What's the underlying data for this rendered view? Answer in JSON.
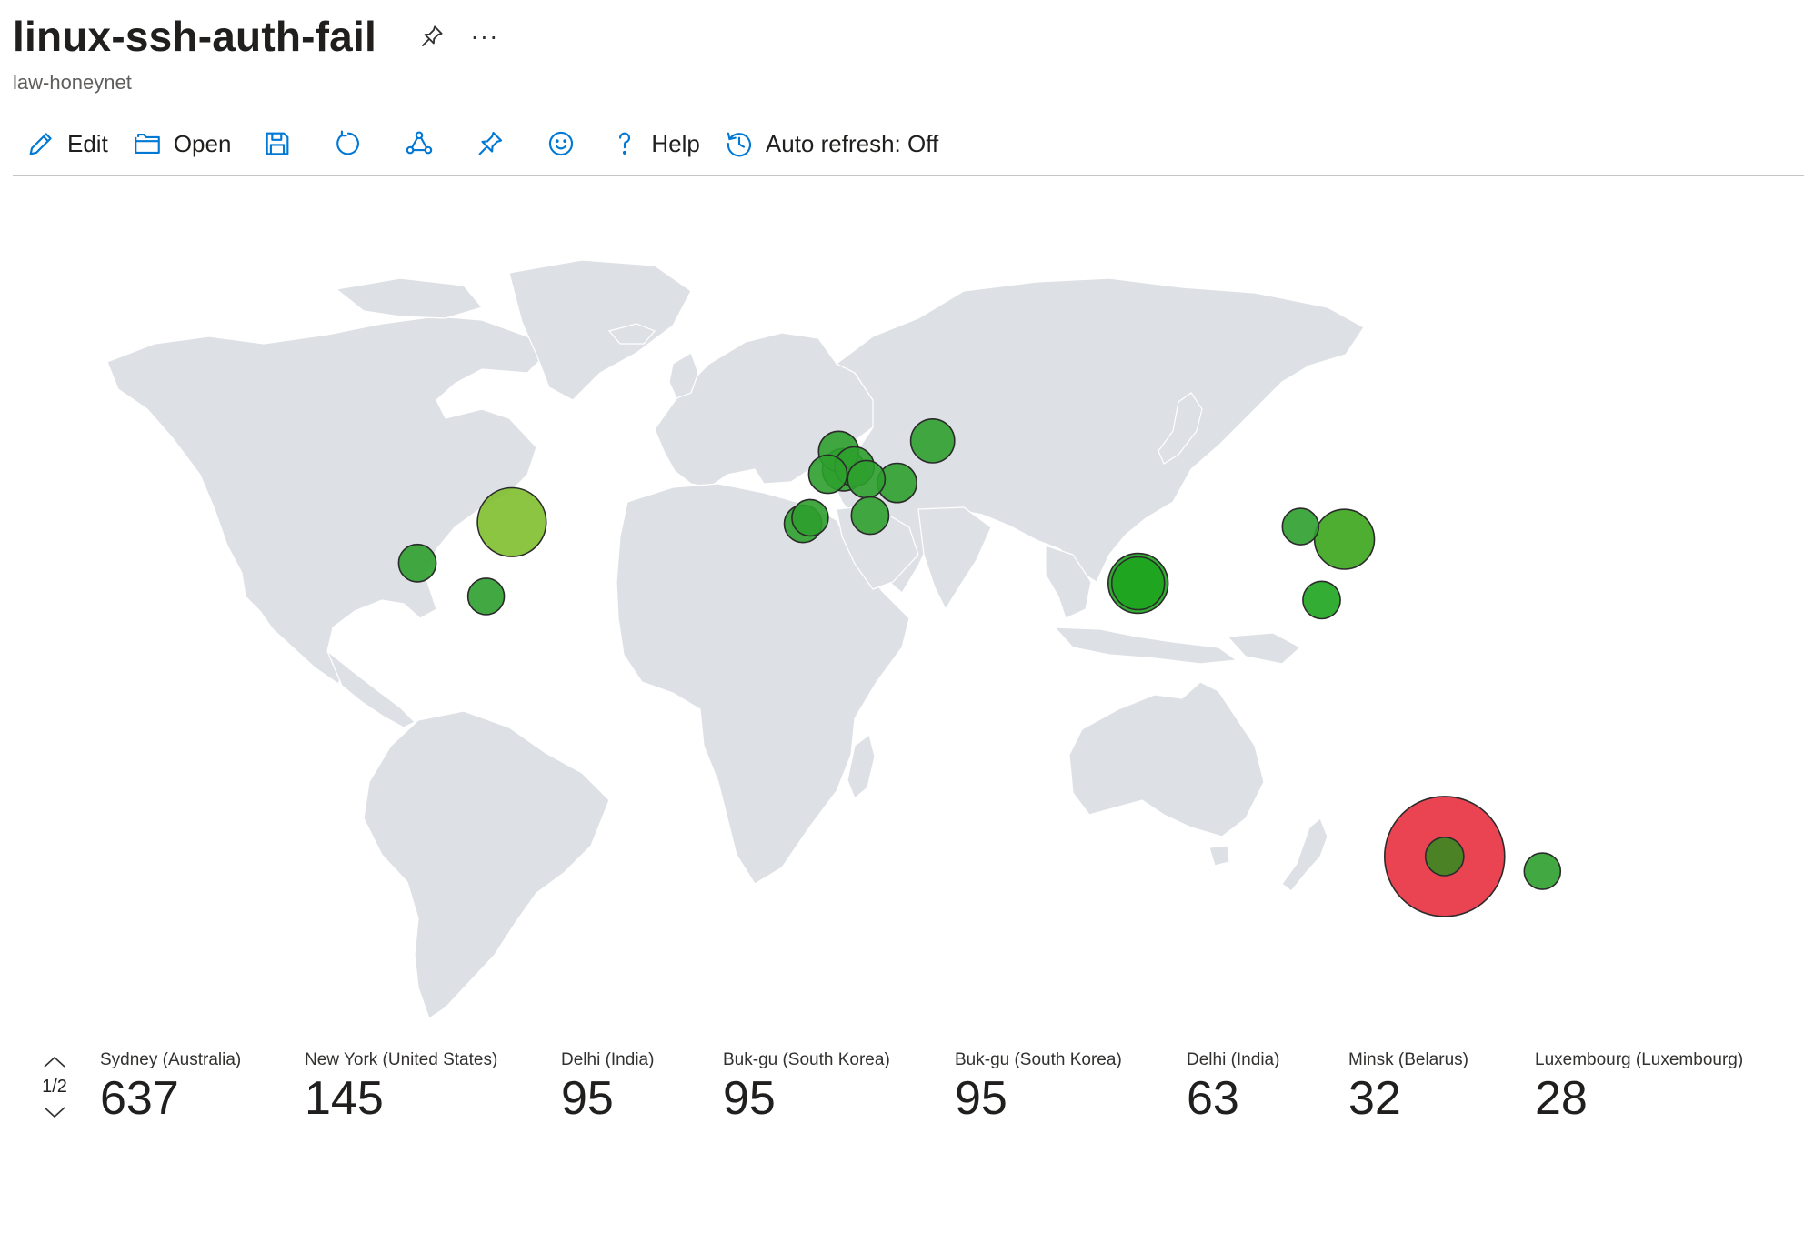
{
  "header": {
    "title": "linux-ssh-auth-fail",
    "subtitle": "law-honeynet",
    "more_label": "···"
  },
  "toolbar": {
    "edit_label": "Edit",
    "open_label": "Open",
    "help_label": "Help",
    "auto_refresh_label": "Auto refresh: Off"
  },
  "icons": {
    "title_pin": "pin-icon",
    "title_more": "more-icon",
    "edit": "pencil-icon",
    "open": "folder-icon",
    "save": "save-icon",
    "refresh": "refresh-icon",
    "share": "share-icon",
    "pin": "pin-icon",
    "feedback": "smiley-icon",
    "help": "help-icon",
    "auto_refresh": "history-icon"
  },
  "colors": {
    "accent": "#0078d4",
    "map_land": "#dde0e5",
    "bubble_low": "#1ea41e",
    "bubble_mid": "#80bf2e",
    "bubble_high": "#e8303f"
  },
  "map_markers": [
    {
      "lon": 151.2,
      "lat": -33.9,
      "count": 637,
      "color": "#e8303f"
    },
    {
      "lon": -74.0,
      "lat": 40.7,
      "count": 145,
      "color": "#80bf2e"
    },
    {
      "lon": 127.0,
      "lat": 37.5,
      "count": 95,
      "color": "#3aa51c"
    },
    {
      "lon": 77.2,
      "lat": 28.6,
      "count": 95,
      "color": "#1ea41e"
    },
    {
      "lon": 77.2,
      "lat": 28.6,
      "count": 63,
      "color": "#1ea41e"
    },
    {
      "lon": 27.6,
      "lat": 53.9,
      "count": 32,
      "color": "#2ea02e"
    },
    {
      "lon": 6.1,
      "lat": 49.6,
      "count": 28,
      "color": "#2ea02e"
    },
    {
      "lon": 4.9,
      "lat": 52.4,
      "count": 22,
      "color": "#2ea02e"
    },
    {
      "lon": 8.7,
      "lat": 50.1,
      "count": 20,
      "color": "#2ea02e"
    },
    {
      "lon": 19.0,
      "lat": 47.5,
      "count": 20,
      "color": "#2ea02e"
    },
    {
      "lon": 2.3,
      "lat": 48.9,
      "count": 18,
      "color": "#2ea02e"
    },
    {
      "lon": 11.6,
      "lat": 48.1,
      "count": 16,
      "color": "#2ea02e"
    },
    {
      "lon": 12.5,
      "lat": 41.9,
      "count": 16,
      "color": "#2ea02e"
    },
    {
      "lon": -3.7,
      "lat": 40.4,
      "count": 16,
      "color": "#2ea02e"
    },
    {
      "lon": -2.0,
      "lat": 41.5,
      "count": 14,
      "color": "#2ea02e"
    },
    {
      "lon": -96.8,
      "lat": 32.8,
      "count": 16,
      "color": "#2ea02e"
    },
    {
      "lon": -80.2,
      "lat": 25.8,
      "count": 14,
      "color": "#2ea02e"
    },
    {
      "lon": 116.4,
      "lat": 39.9,
      "count": 14,
      "color": "#2ea02e"
    },
    {
      "lon": 121.5,
      "lat": 25.0,
      "count": 16,
      "color": "#1ea41e"
    },
    {
      "lon": 174.8,
      "lat": -36.8,
      "count": 14,
      "color": "#2ea02e"
    },
    {
      "lon": 151.2,
      "lat": -33.9,
      "count": 18,
      "color": "#3a8a20"
    }
  ],
  "tiles": {
    "pager": "1/2",
    "items": [
      {
        "label": "Sydney (Australia)",
        "value": "637"
      },
      {
        "label": "New York (United States)",
        "value": "145"
      },
      {
        "label": "Delhi (India)",
        "value": "95"
      },
      {
        "label": "Buk-gu (South Korea)",
        "value": "95"
      },
      {
        "label": "Buk-gu (South Korea)",
        "value": "95"
      },
      {
        "label": "Delhi (India)",
        "value": "63"
      },
      {
        "label": "Minsk (Belarus)",
        "value": "32"
      },
      {
        "label": "Luxembourg (Luxembourg)",
        "value": "28"
      }
    ]
  }
}
